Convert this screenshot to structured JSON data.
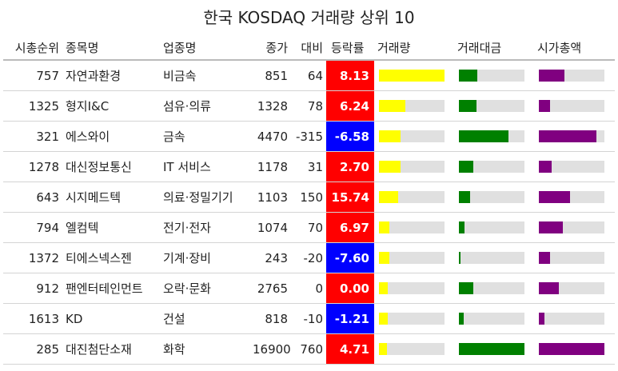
{
  "chart_data": {
    "type": "table",
    "title": "한국 KOSDAQ 거래량 상위 10",
    "columns": [
      "시총순위",
      "종목명",
      "업종명",
      "종가",
      "대비",
      "등락률",
      "거래량",
      "거래대금",
      "시가총액"
    ],
    "colors": {
      "up": "#ff0000",
      "down": "#0000ff",
      "volume_bar": "#ffff00",
      "trade_value_bar": "#008000",
      "market_cap_bar": "#800080",
      "bar_track": "#e0e0e0"
    },
    "bar_scale_note": "",
    "rows": [
      {
        "rank": "757",
        "name": "자연과환경",
        "sector": "비금속",
        "close": "851",
        "diff": "64",
        "rate": "8.13",
        "volume": 1.0,
        "trade_value": 0.28,
        "market_cap": 0.39
      },
      {
        "rank": "1325",
        "name": "형지I&C",
        "sector": "섬유·의류",
        "close": "1328",
        "diff": "78",
        "rate": "6.24",
        "volume": 0.4,
        "trade_value": 0.27,
        "market_cap": 0.17
      },
      {
        "rank": "321",
        "name": "에스와이",
        "sector": "금속",
        "close": "4470",
        "diff": "-315",
        "rate": "-6.58",
        "volume": 0.33,
        "trade_value": 0.76,
        "market_cap": 0.88
      },
      {
        "rank": "1278",
        "name": "대신정보통신",
        "sector": "IT 서비스",
        "close": "1178",
        "diff": "31",
        "rate": "2.70",
        "volume": 0.33,
        "trade_value": 0.22,
        "market_cap": 0.19
      },
      {
        "rank": "643",
        "name": "시지메드텍",
        "sector": "의료·정밀기기",
        "close": "1103",
        "diff": "150",
        "rate": "15.74",
        "volume": 0.29,
        "trade_value": 0.17,
        "market_cap": 0.47
      },
      {
        "rank": "794",
        "name": "엘컴텍",
        "sector": "전기·전자",
        "close": "1074",
        "diff": "70",
        "rate": "6.97",
        "volume": 0.16,
        "trade_value": 0.09,
        "market_cap": 0.37
      },
      {
        "rank": "1372",
        "name": "티에스넥스젠",
        "sector": "기계·장비",
        "close": "243",
        "diff": "-20",
        "rate": "-7.60",
        "volume": 0.16,
        "trade_value": 0.03,
        "market_cap": 0.17
      },
      {
        "rank": "912",
        "name": "팬엔터테인먼트",
        "sector": "오락·문화",
        "close": "2765",
        "diff": "0",
        "rate": "0.00",
        "volume": 0.13,
        "trade_value": 0.22,
        "market_cap": 0.31
      },
      {
        "rank": "1613",
        "name": "KD",
        "sector": "건설",
        "close": "818",
        "diff": "-10",
        "rate": "-1.21",
        "volume": 0.13,
        "trade_value": 0.07,
        "market_cap": 0.09
      },
      {
        "rank": "285",
        "name": "대진첨단소재",
        "sector": "화학",
        "close": "16900",
        "diff": "760",
        "rate": "4.71",
        "volume": 0.12,
        "trade_value": 1.0,
        "market_cap": 1.0
      }
    ]
  }
}
